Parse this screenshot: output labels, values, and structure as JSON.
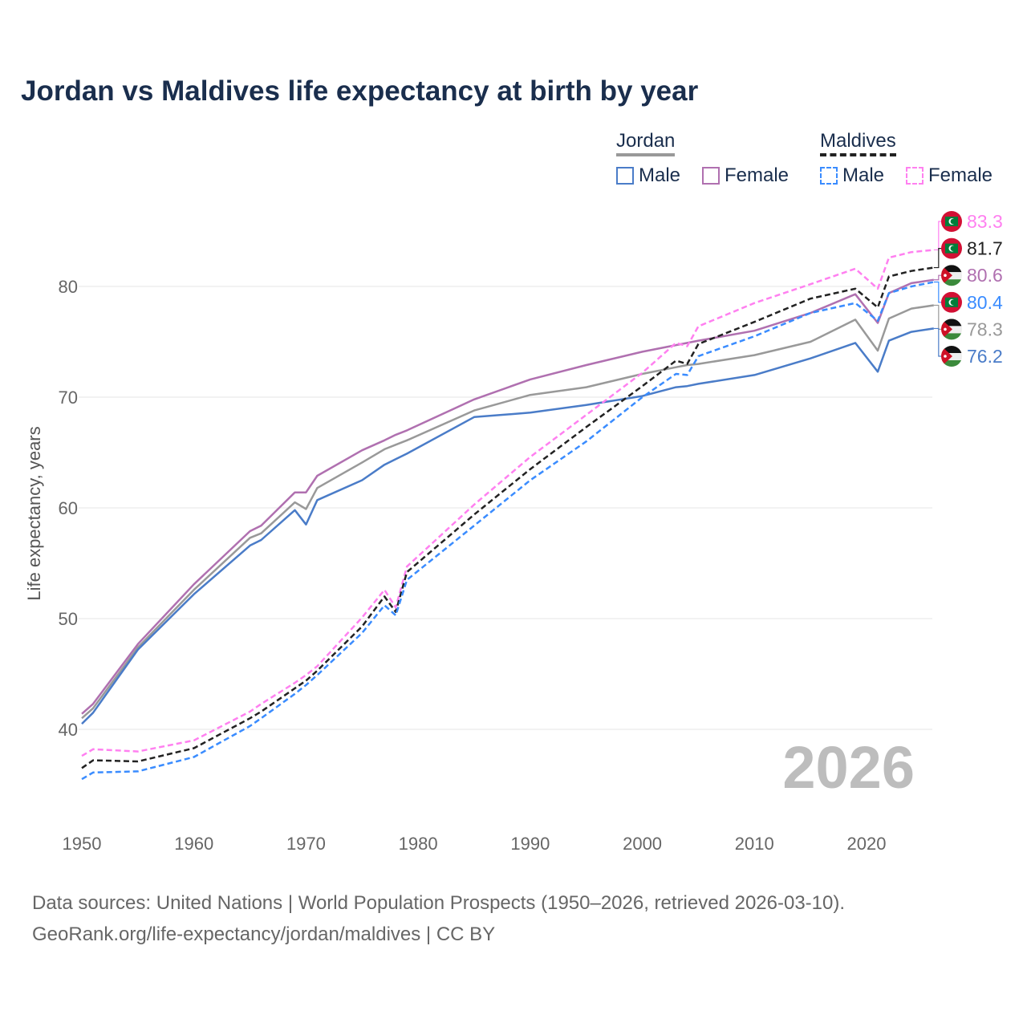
{
  "title": "Jordan vs Maldives life expectancy at birth by year",
  "legend": {
    "groups": [
      {
        "label": "Jordan",
        "items": [
          "Male",
          "Female"
        ]
      },
      {
        "label": "Maldives",
        "items": [
          "Male",
          "Female"
        ]
      }
    ]
  },
  "year_watermark": "2026",
  "source_line1": "Data sources: United Nations | World Population Prospects (1950–2026, retrieved 2026-03-10).",
  "source_line2": "GeoRank.org/life-expectancy/jordan/maldives | CC BY",
  "chart_data": {
    "type": "line",
    "title": "Jordan vs Maldives life expectancy at birth by year",
    "xlabel": "",
    "ylabel": "Life expectancy, years",
    "xlim": [
      1950,
      2026
    ],
    "ylim": [
      33,
      86
    ],
    "xticks": [
      "1950",
      "1960",
      "1970",
      "1980",
      "1990",
      "2000",
      "2010",
      "2020"
    ],
    "yticks": [
      "40",
      "50",
      "60",
      "70",
      "80"
    ],
    "grid": true,
    "legend_position": "top-right",
    "x": [
      1950,
      1951,
      1955,
      1960,
      1965,
      1966,
      1969,
      1970,
      1971,
      1975,
      1977,
      1978,
      1979,
      1985,
      1990,
      1995,
      2000,
      2003,
      2004,
      2005,
      2010,
      2015,
      2019,
      2021,
      2022,
      2024,
      2026
    ],
    "series": [
      {
        "name": "Jordan Female",
        "country": "Jordan",
        "flag": "jordan-flag",
        "color": "#b070b0",
        "dash": false,
        "end_label": "80.6",
        "values": [
          41.4,
          42.3,
          47.7,
          53.1,
          57.9,
          58.4,
          61.4,
          61.4,
          62.9,
          65.2,
          66.1,
          66.6,
          67.0,
          69.8,
          71.6,
          72.9,
          74.1,
          74.7,
          74.9,
          75.1,
          76.0,
          77.6,
          79.3,
          76.7,
          79.4,
          80.3,
          80.6
        ]
      },
      {
        "name": "Jordan",
        "country": "Jordan",
        "flag": "jordan-flag",
        "color": "#999999",
        "dash": false,
        "end_label": "78.3",
        "values": [
          41.0,
          41.9,
          47.4,
          52.6,
          57.3,
          57.7,
          60.5,
          59.9,
          61.8,
          64.1,
          65.3,
          65.7,
          66.1,
          68.8,
          70.2,
          70.9,
          72.1,
          72.7,
          72.9,
          73.0,
          73.8,
          75.0,
          77.0,
          74.2,
          77.1,
          78.0,
          78.3
        ]
      },
      {
        "name": "Jordan Male",
        "country": "Jordan",
        "flag": "jordan-flag",
        "color": "#4a7cc8",
        "dash": false,
        "end_label": "76.2",
        "values": [
          40.5,
          41.5,
          47.2,
          52.2,
          56.6,
          57.1,
          59.8,
          58.5,
          60.7,
          62.5,
          63.9,
          64.4,
          64.9,
          68.2,
          68.6,
          69.3,
          70.1,
          70.9,
          71.0,
          71.2,
          72.0,
          73.5,
          74.9,
          72.3,
          75.1,
          75.9,
          76.2
        ]
      },
      {
        "name": "Maldives Female",
        "country": "Maldives",
        "flag": "maldives-flag",
        "color": "#ff80f0",
        "dash": true,
        "end_label": "83.3",
        "values": [
          37.6,
          38.2,
          38.0,
          39.0,
          41.6,
          42.3,
          44.2,
          44.9,
          45.7,
          50.1,
          52.6,
          51.0,
          54.7,
          60.3,
          64.6,
          68.4,
          72.2,
          74.9,
          74.6,
          76.4,
          78.5,
          80.2,
          81.6,
          79.8,
          82.6,
          83.1,
          83.3
        ]
      },
      {
        "name": "Maldives",
        "country": "Maldives",
        "flag": "maldives-flag",
        "color": "#222222",
        "dash": true,
        "end_label": "81.7",
        "values": [
          36.5,
          37.2,
          37.1,
          38.3,
          41.0,
          41.6,
          43.7,
          44.4,
          45.3,
          49.3,
          52.0,
          50.6,
          54.2,
          59.4,
          63.5,
          67.3,
          71.0,
          73.3,
          73.0,
          74.8,
          76.8,
          78.9,
          79.8,
          78.1,
          80.9,
          81.4,
          81.7
        ]
      },
      {
        "name": "Maldives Male",
        "country": "Maldives",
        "flag": "maldives-flag",
        "color": "#3a8cff",
        "dash": true,
        "end_label": "80.4",
        "values": [
          35.5,
          36.1,
          36.2,
          37.5,
          40.3,
          41.0,
          43.2,
          44.0,
          44.9,
          48.7,
          51.2,
          50.3,
          53.5,
          58.4,
          62.5,
          66.0,
          70.0,
          72.1,
          72.0,
          73.7,
          75.5,
          77.6,
          78.5,
          76.9,
          79.4,
          80.0,
          80.4
        ]
      }
    ]
  }
}
